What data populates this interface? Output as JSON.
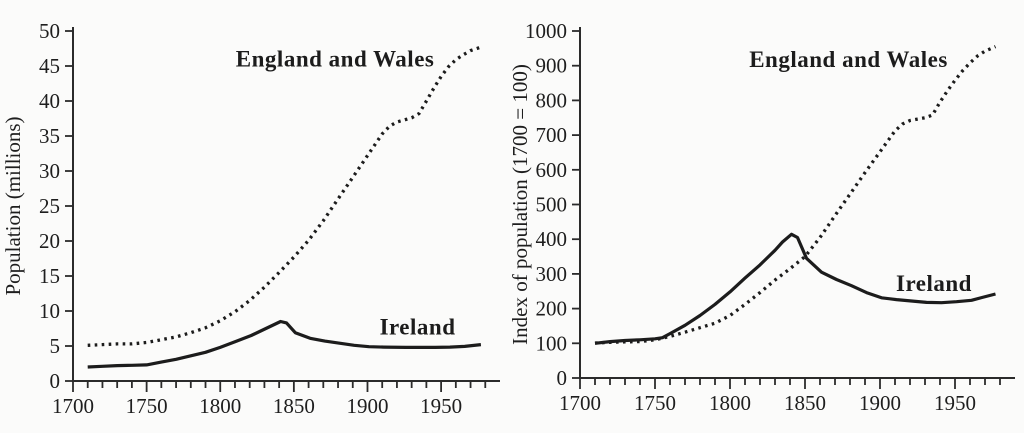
{
  "palette": {
    "paper": "#fbfbfa",
    "ink": "#1c1c1c",
    "axis": "#2b2b2b",
    "text": "#1e1e1e"
  },
  "chart_data": [
    {
      "id": "population-millions",
      "type": "line",
      "title": "",
      "xlabel": "",
      "ylabel": "Population (millions)",
      "xlim": [
        1700,
        1990
      ],
      "ylim": [
        0,
        50
      ],
      "yticks": [
        0,
        5,
        10,
        15,
        20,
        25,
        30,
        35,
        40,
        45,
        50
      ],
      "xticks_major": [
        1700,
        1750,
        1800,
        1850,
        1900,
        1950
      ],
      "xtick_minor_step": 10,
      "xtick_minor_end": 1980,
      "grid": false,
      "legend_position": "inline",
      "series": [
        {
          "name": "England and Wales",
          "line_style": "dotted",
          "points": [
            [
              1710,
              5.1
            ],
            [
              1720,
              5.2
            ],
            [
              1730,
              5.3
            ],
            [
              1740,
              5.3
            ],
            [
              1750,
              5.5
            ],
            [
              1760,
              5.9
            ],
            [
              1770,
              6.3
            ],
            [
              1780,
              6.9
            ],
            [
              1790,
              7.6
            ],
            [
              1800,
              8.6
            ],
            [
              1810,
              9.9
            ],
            [
              1820,
              11.5
            ],
            [
              1830,
              13.4
            ],
            [
              1840,
              15.5
            ],
            [
              1850,
              17.7
            ],
            [
              1860,
              20.1
            ],
            [
              1870,
              22.9
            ],
            [
              1880,
              26.0
            ],
            [
              1890,
              29.1
            ],
            [
              1900,
              32.2
            ],
            [
              1910,
              35.3
            ],
            [
              1915,
              36.4
            ],
            [
              1920,
              37.0
            ],
            [
              1925,
              37.3
            ],
            [
              1930,
              37.6
            ],
            [
              1935,
              38.2
            ],
            [
              1940,
              40.0
            ],
            [
              1945,
              41.8
            ],
            [
              1950,
              43.5
            ],
            [
              1955,
              44.9
            ],
            [
              1960,
              45.9
            ],
            [
              1965,
              46.6
            ],
            [
              1970,
              47.2
            ],
            [
              1977,
              47.7
            ]
          ]
        },
        {
          "name": "Ireland",
          "line_style": "solid",
          "points": [
            [
              1710,
              2.0
            ],
            [
              1720,
              2.1
            ],
            [
              1730,
              2.2
            ],
            [
              1740,
              2.25
            ],
            [
              1750,
              2.3
            ],
            [
              1760,
              2.7
            ],
            [
              1770,
              3.1
            ],
            [
              1780,
              3.6
            ],
            [
              1790,
              4.1
            ],
            [
              1800,
              4.8
            ],
            [
              1810,
              5.6
            ],
            [
              1821,
              6.5
            ],
            [
              1831,
              7.5
            ],
            [
              1841,
              8.5
            ],
            [
              1845,
              8.3
            ],
            [
              1851,
              6.9
            ],
            [
              1861,
              6.1
            ],
            [
              1871,
              5.7
            ],
            [
              1881,
              5.4
            ],
            [
              1891,
              5.1
            ],
            [
              1901,
              4.9
            ],
            [
              1911,
              4.85
            ],
            [
              1926,
              4.8
            ],
            [
              1936,
              4.8
            ],
            [
              1946,
              4.8
            ],
            [
              1956,
              4.85
            ],
            [
              1966,
              4.95
            ],
            [
              1977,
              5.2
            ]
          ]
        }
      ],
      "annotations": [
        {
          "text": "England and Wales",
          "x": 1878,
          "y": 46
        },
        {
          "text": "Ireland",
          "x": 1934,
          "y": 7.7
        }
      ]
    },
    {
      "id": "population-index",
      "type": "line",
      "title": "",
      "xlabel": "",
      "ylabel": "Index of population (1700 = 100)",
      "xlim": [
        1700,
        1990
      ],
      "ylim": [
        0,
        1000
      ],
      "yticks": [
        0,
        100,
        200,
        300,
        400,
        500,
        600,
        700,
        800,
        900,
        1000
      ],
      "xticks_major": [
        1700,
        1750,
        1800,
        1850,
        1900,
        1950
      ],
      "xtick_minor_step": 10,
      "xtick_minor_end": 1980,
      "grid": false,
      "legend_position": "inline",
      "series": [
        {
          "name": "England and Wales",
          "line_style": "dotted",
          "points": [
            [
              1710,
              101
            ],
            [
              1720,
              103
            ],
            [
              1730,
              104
            ],
            [
              1740,
              105
            ],
            [
              1750,
              110
            ],
            [
              1760,
              120
            ],
            [
              1770,
              132
            ],
            [
              1780,
              145
            ],
            [
              1790,
              158
            ],
            [
              1800,
              180
            ],
            [
              1810,
              212
            ],
            [
              1820,
              246
            ],
            [
              1830,
              282
            ],
            [
              1840,
              315
            ],
            [
              1850,
              350
            ],
            [
              1860,
              405
            ],
            [
              1870,
              468
            ],
            [
              1880,
              530
            ],
            [
              1890,
              592
            ],
            [
              1900,
              652
            ],
            [
              1910,
              712
            ],
            [
              1915,
              732
            ],
            [
              1920,
              742
            ],
            [
              1925,
              746
            ],
            [
              1930,
              750
            ],
            [
              1935,
              758
            ],
            [
              1940,
              795
            ],
            [
              1945,
              828
            ],
            [
              1950,
              858
            ],
            [
              1955,
              885
            ],
            [
              1960,
              908
            ],
            [
              1965,
              928
            ],
            [
              1970,
              942
            ],
            [
              1977,
              955
            ]
          ]
        },
        {
          "name": "Ireland",
          "line_style": "solid",
          "points": [
            [
              1710,
              100
            ],
            [
              1720,
              105
            ],
            [
              1730,
              108
            ],
            [
              1740,
              110
            ],
            [
              1750,
              113
            ],
            [
              1755,
              116
            ],
            [
              1760,
              128
            ],
            [
              1770,
              152
            ],
            [
              1780,
              180
            ],
            [
              1790,
              212
            ],
            [
              1800,
              248
            ],
            [
              1810,
              288
            ],
            [
              1820,
              326
            ],
            [
              1830,
              368
            ],
            [
              1835,
              392
            ],
            [
              1841,
              414
            ],
            [
              1845,
              405
            ],
            [
              1851,
              345
            ],
            [
              1861,
              305
            ],
            [
              1871,
              284
            ],
            [
              1881,
              266
            ],
            [
              1891,
              246
            ],
            [
              1901,
              231
            ],
            [
              1911,
              226
            ],
            [
              1921,
              222
            ],
            [
              1931,
              218
            ],
            [
              1941,
              217
            ],
            [
              1951,
              220
            ],
            [
              1961,
              224
            ],
            [
              1968,
              232
            ],
            [
              1977,
              242
            ]
          ]
        }
      ],
      "annotations": [
        {
          "text": "England and Wales",
          "x": 1879,
          "y": 918
        },
        {
          "text": "Ireland",
          "x": 1936,
          "y": 273
        }
      ]
    }
  ]
}
